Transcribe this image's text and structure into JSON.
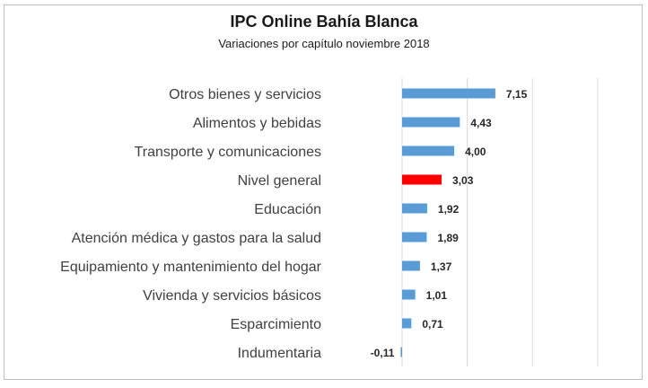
{
  "chart_data": {
    "type": "bar",
    "orientation": "horizontal",
    "title": "IPC Online Bahía Blanca",
    "subtitle": "Variaciones por capítulo noviembre 2018",
    "categories": [
      "Otros bienes y servicios",
      "Alimentos y bebidas",
      "Transporte y comunicaciones",
      "Nivel general",
      "Educación",
      "Atención médica y gastos para la salud",
      "Equipamiento y mantenimiento del hogar",
      "Vivienda y servicios básicos",
      "Esparcimiento",
      "Indumentaria"
    ],
    "values": [
      7.15,
      4.43,
      4.0,
      3.03,
      1.92,
      1.89,
      1.37,
      1.01,
      0.71,
      -0.11
    ],
    "value_labels": [
      "7,15",
      "4,43",
      "4,00",
      "3,03",
      "1,92",
      "1,89",
      "1,37",
      "1,01",
      "0,71",
      "-0,11"
    ],
    "highlight_category": "Nivel general",
    "colors": {
      "bar": "#5b9bd5",
      "highlight": "#ff0000",
      "grid": "#d9d9d9"
    },
    "xlim": [
      0,
      15
    ],
    "grid_step": 5,
    "grid": true,
    "legend": "none"
  }
}
